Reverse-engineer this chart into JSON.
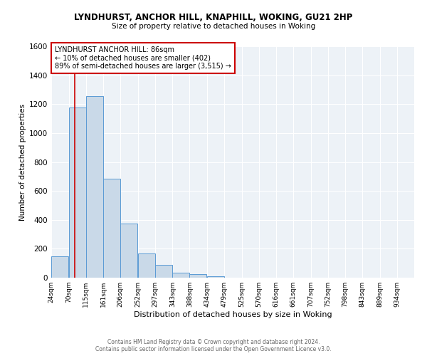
{
  "title": "LYNDHURST, ANCHOR HILL, KNAPHILL, WOKING, GU21 2HP",
  "subtitle": "Size of property relative to detached houses in Woking",
  "xlabel": "Distribution of detached houses by size in Woking",
  "ylabel": "Number of detached properties",
  "bar_color": "#c9d9e8",
  "bar_edgecolor": "#5b9bd5",
  "ylim": [
    0,
    1600
  ],
  "yticks": [
    0,
    200,
    400,
    600,
    800,
    1000,
    1200,
    1400,
    1600
  ],
  "vline_x": 86,
  "vline_color": "#cc0000",
  "annotation_title": "LYNDHURST ANCHOR HILL: 86sqm",
  "annotation_line1": "← 10% of detached houses are smaller (402)",
  "annotation_line2": "89% of semi-detached houses are larger (3,515) →",
  "annotation_box_color": "#ffffff",
  "annotation_box_edgecolor": "#cc0000",
  "footer1": "Contains HM Land Registry data © Crown copyright and database right 2024.",
  "footer2": "Contains public sector information licensed under the Open Government Licence v3.0.",
  "bin_edges": [
    24,
    70,
    115,
    161,
    206,
    252,
    297,
    343,
    388,
    434,
    479,
    525,
    570,
    616,
    661,
    707,
    752,
    798,
    843,
    889,
    934
  ],
  "bar_heights": [
    150,
    1175,
    1255,
    685,
    375,
    165,
    90,
    35,
    25,
    10,
    0,
    0,
    0,
    0,
    0,
    0,
    0,
    0,
    0,
    0,
    0
  ],
  "xtick_labels": [
    "24sqm",
    "70sqm",
    "115sqm",
    "161sqm",
    "206sqm",
    "252sqm",
    "297sqm",
    "343sqm",
    "388sqm",
    "434sqm",
    "479sqm",
    "525sqm",
    "570sqm",
    "616sqm",
    "661sqm",
    "707sqm",
    "752sqm",
    "798sqm",
    "843sqm",
    "889sqm",
    "934sqm"
  ]
}
